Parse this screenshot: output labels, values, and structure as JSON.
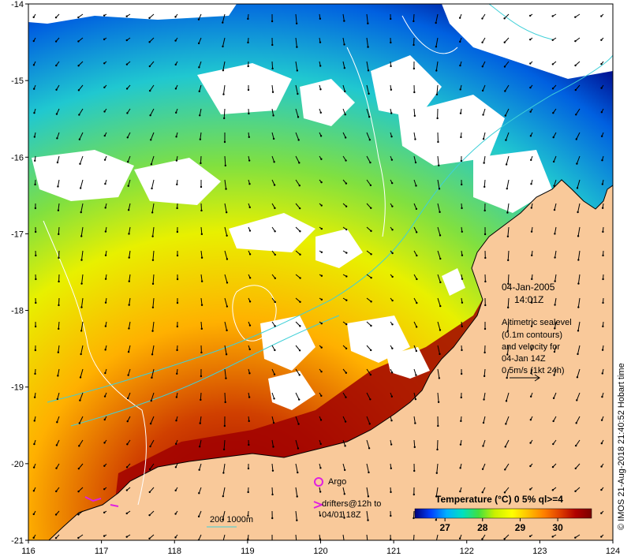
{
  "map": {
    "date": "04-Jan-2005",
    "time": "14:01Z",
    "altimetry_lines": [
      "Altimetric sealevel",
      "(0.1m contours)",
      "and velocity for",
      "04-Jan 14Z",
      "0.5m/s (1kt 24h)"
    ],
    "argo_label": "Argo",
    "drifters_line1": "drifters@12h to",
    "drifters_line2": "04/01 18Z",
    "depth_scale_label": "200  1000m",
    "credit": "© IMOS 21-Aug-2018 21:40:52 Hobart time",
    "colors": {
      "land": "#f9c99a",
      "cloud": "#ffffff",
      "contour": "#ffffff",
      "isobath": "#40d0d8",
      "drifter": "#e020e0"
    }
  },
  "chart_data": {
    "type": "heatmap",
    "x_axis": {
      "label": "",
      "range": [
        116,
        124
      ],
      "ticks": [
        116,
        117,
        118,
        119,
        120,
        121,
        122,
        123,
        124
      ]
    },
    "y_axis": {
      "label": "",
      "range": [
        -21,
        -14
      ],
      "ticks": [
        -14,
        -15,
        -16,
        -17,
        -18,
        -19,
        -20,
        -21
      ]
    },
    "colorbar": {
      "title": "Temperature (°C) 0 5% ql>=4",
      "range": [
        26.2,
        30.9
      ],
      "ticks": [
        27,
        28,
        29,
        30
      ],
      "colors": [
        "#00007a",
        "#0040ff",
        "#00b0ff",
        "#00e0c0",
        "#40e040",
        "#c8f000",
        "#ffff00",
        "#ffc000",
        "#ff8000",
        "#e04000",
        "#b00000",
        "#7a0000"
      ]
    },
    "argo_floats": [
      {
        "lon": 119.97,
        "lat": -20.2
      }
    ],
    "drifters": [
      {
        "lon": 117.0,
        "lat": -20.4
      },
      {
        "lon": 117.35,
        "lat": -20.45
      }
    ]
  }
}
